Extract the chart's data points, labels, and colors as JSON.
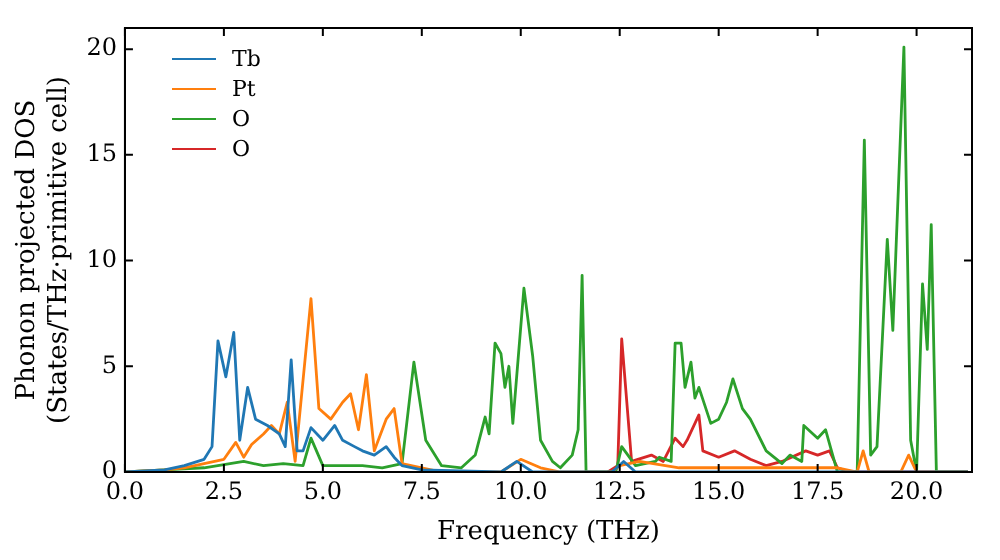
{
  "chart_data": {
    "type": "line",
    "xlabel": "Frequency (THz)",
    "ylabel": "Phonon projected DOS\n(States/THz·primitive cell)",
    "xlim": [
      0,
      21.4
    ],
    "ylim": [
      0,
      21
    ],
    "xticks": [
      {
        "value": 0,
        "label": "0.0"
      },
      {
        "value": 2.5,
        "label": "2.5"
      },
      {
        "value": 5,
        "label": "5.0"
      },
      {
        "value": 7.5,
        "label": "7.5"
      },
      {
        "value": 10,
        "label": "10.0"
      },
      {
        "value": 12.5,
        "label": "12.5"
      },
      {
        "value": 15,
        "label": "15.0"
      },
      {
        "value": 17.5,
        "label": "17.5"
      },
      {
        "value": 20,
        "label": "20.0"
      }
    ],
    "yticks": [
      0,
      5,
      10,
      15,
      20
    ],
    "legend": "top left",
    "grid": false,
    "marker": "none",
    "line_style": "solid",
    "series": [
      {
        "name": "Tb",
        "color": "#1f77b4",
        "x": [
          0,
          1,
          1.5,
          2,
          2.2,
          2.35,
          2.55,
          2.75,
          2.9,
          3.1,
          3.3,
          3.6,
          3.9,
          4.05,
          4.2,
          4.35,
          4.5,
          4.7,
          5.0,
          5.3,
          5.5,
          5.8,
          6.0,
          6.3,
          6.6,
          6.8,
          7.0,
          7.5,
          9.5,
          9.9,
          10.3,
          12.3,
          12.6,
          12.9,
          21.3
        ],
        "values": [
          0,
          0.1,
          0.3,
          0.6,
          1.2,
          6.2,
          4.5,
          6.6,
          1.5,
          4.0,
          2.5,
          2.2,
          1.8,
          1.2,
          5.3,
          1.0,
          1.0,
          2.1,
          1.5,
          2.2,
          1.5,
          1.2,
          1.0,
          0.8,
          1.2,
          0.7,
          0.3,
          0.1,
          0,
          0.5,
          0,
          0,
          0.5,
          0,
          0
        ]
      },
      {
        "name": "Pt",
        "color": "#ff7f0e",
        "x": [
          0,
          1,
          1.5,
          2,
          2.5,
          2.8,
          3.0,
          3.2,
          3.5,
          3.7,
          3.9,
          4.1,
          4.3,
          4.7,
          4.9,
          5.2,
          5.5,
          5.7,
          5.9,
          6.1,
          6.3,
          6.6,
          6.8,
          7.0,
          7.5,
          8,
          9.5,
          10,
          10.5,
          11,
          12.3,
          12.5,
          13,
          14,
          16,
          18,
          18.5,
          18.65,
          18.8,
          19.6,
          19.8,
          20,
          21.3
        ],
        "values": [
          0,
          0.1,
          0.2,
          0.4,
          0.6,
          1.4,
          0.7,
          1.3,
          1.8,
          2.2,
          1.8,
          3.3,
          0.5,
          8.2,
          3.0,
          2.5,
          3.3,
          3.7,
          2.0,
          4.6,
          1.0,
          2.5,
          3.0,
          0.4,
          0.2,
          0,
          0,
          0.6,
          0.2,
          0,
          0,
          0.3,
          0.5,
          0.2,
          0.2,
          0.2,
          0,
          1.0,
          0,
          0,
          0.8,
          0,
          0
        ]
      },
      {
        "name": "O",
        "color": "#2ca02c",
        "x": [
          0,
          1,
          2,
          3,
          3.5,
          4,
          4.5,
          4.7,
          5,
          5.5,
          6,
          6.5,
          7,
          7.3,
          7.6,
          8,
          8.5,
          8.85,
          9.1,
          9.2,
          9.35,
          9.5,
          9.6,
          9.7,
          9.8,
          10.08,
          10.3,
          10.5,
          10.8,
          11,
          11.3,
          11.45,
          11.55,
          11.65,
          12.4,
          12.55,
          12.9,
          13.4,
          13.5,
          13.8,
          13.9,
          14.05,
          14.15,
          14.3,
          14.4,
          14.5,
          14.8,
          15,
          15.2,
          15.36,
          15.6,
          15.8,
          16.2,
          16.6,
          16.8,
          17.1,
          17.15,
          17.5,
          17.7,
          17.85,
          18,
          18.5,
          18.68,
          18.84,
          19,
          19.26,
          19.4,
          19.68,
          19.85,
          20,
          20.15,
          20.27,
          20.37,
          20.5,
          21.3
        ],
        "values": [
          0,
          0.1,
          0.2,
          0.5,
          0.3,
          0.4,
          0.3,
          1.6,
          0.3,
          0.3,
          0.3,
          0.2,
          0.4,
          5.2,
          1.5,
          0.3,
          0.2,
          0.8,
          2.6,
          1.8,
          6.1,
          5.6,
          4.0,
          5.0,
          2.3,
          8.7,
          5.5,
          1.5,
          0.5,
          0.2,
          0.8,
          2.0,
          9.3,
          0,
          0,
          1.2,
          0.3,
          0.5,
          0.7,
          0.5,
          6.1,
          6.1,
          4.0,
          5.2,
          3.5,
          4.0,
          2.3,
          2.5,
          3.3,
          4.4,
          3.0,
          2.5,
          1.0,
          0.4,
          0.8,
          0.5,
          2.2,
          1.6,
          2.0,
          1.0,
          0,
          0,
          15.7,
          0.8,
          1.2,
          11.0,
          6.7,
          20.1,
          1.5,
          0,
          8.9,
          5.8,
          11.7,
          0,
          0
        ]
      },
      {
        "name": "O",
        "color": "#d62728",
        "x": [
          12.2,
          12.45,
          12.55,
          12.8,
          13.3,
          13.6,
          13.9,
          14.1,
          14.2,
          14.5,
          14.6,
          15,
          15.4,
          15.8,
          16.2,
          16.6,
          17.2,
          17.5,
          17.8,
          18,
          18.3,
          21.3
        ],
        "values": [
          0,
          0.3,
          6.3,
          0.5,
          0.8,
          0.5,
          1.6,
          1.2,
          1.5,
          2.7,
          1.0,
          0.7,
          1.0,
          0.6,
          0.3,
          0.5,
          1.0,
          0.8,
          1.0,
          0.2,
          0,
          0
        ]
      }
    ]
  }
}
